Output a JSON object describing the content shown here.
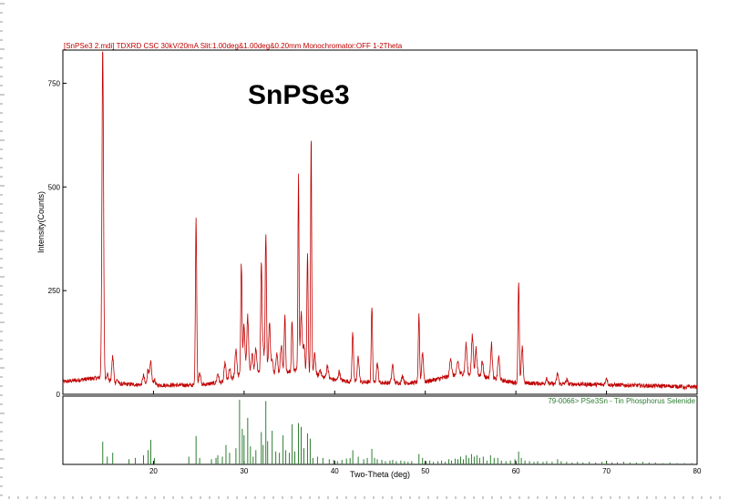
{
  "header_text": "[SnPSe3 2.mdi] TDXRD CSC 30kV/20mA Slit:1.00deg&1.00deg&0.20mm Monochromator:OFF 1-2Theta",
  "big_title": "SnPSe3",
  "reference_label": "79-0066> PSe3Sn - Tin Phosphorus Selenide",
  "colors": {
    "pattern": "#c00000",
    "reference": "#2e7d32",
    "header": "#c00000",
    "axis": "#000000"
  },
  "chart_data": [
    {
      "type": "line",
      "title": "SnPSe3",
      "xlabel": "",
      "ylabel": "Intensity(Counts)",
      "xlim": [
        10,
        80
      ],
      "ylim": [
        0,
        830
      ],
      "x_ticks": [
        20,
        30,
        40,
        50,
        60,
        70,
        80
      ],
      "y_ticks": [
        0,
        250,
        500,
        750
      ],
      "baseline": [
        [
          10,
          30
        ],
        [
          14,
          40
        ],
        [
          16,
          25
        ],
        [
          20,
          22
        ],
        [
          25,
          22
        ],
        [
          28,
          30
        ],
        [
          30,
          50
        ],
        [
          32,
          55
        ],
        [
          34,
          50
        ],
        [
          36,
          60
        ],
        [
          38,
          45
        ],
        [
          40,
          35
        ],
        [
          42,
          30
        ],
        [
          45,
          28
        ],
        [
          48,
          27
        ],
        [
          50,
          30
        ],
        [
          52,
          40
        ],
        [
          54,
          50
        ],
        [
          56,
          45
        ],
        [
          58,
          35
        ],
        [
          60,
          28
        ],
        [
          64,
          25
        ],
        [
          68,
          24
        ],
        [
          72,
          22
        ],
        [
          76,
          20
        ],
        [
          80,
          18
        ]
      ],
      "peaks": [
        [
          14.4,
          815,
          0.09
        ],
        [
          14.9,
          50,
          0.1
        ],
        [
          15.5,
          90,
          0.1
        ],
        [
          16.0,
          35,
          0.1
        ],
        [
          18.9,
          45,
          0.1
        ],
        [
          19.4,
          60,
          0.1
        ],
        [
          19.7,
          75,
          0.1
        ],
        [
          20.1,
          35,
          0.1
        ],
        [
          24.7,
          430,
          0.07
        ],
        [
          25.1,
          55,
          0.1
        ],
        [
          27.1,
          50,
          0.1
        ],
        [
          27.9,
          75,
          0.1
        ],
        [
          28.4,
          60,
          0.1
        ],
        [
          29.1,
          110,
          0.1
        ],
        [
          29.7,
          315,
          0.07
        ],
        [
          30.0,
          165,
          0.1
        ],
        [
          30.4,
          185,
          0.1
        ],
        [
          30.9,
          95,
          0.1
        ],
        [
          31.3,
          110,
          0.1
        ],
        [
          31.9,
          315,
          0.07
        ],
        [
          32.1,
          120,
          0.1
        ],
        [
          32.4,
          395,
          0.07
        ],
        [
          32.8,
          170,
          0.1
        ],
        [
          33.1,
          80,
          0.1
        ],
        [
          33.6,
          100,
          0.1
        ],
        [
          34.1,
          120,
          0.1
        ],
        [
          34.5,
          195,
          0.07
        ],
        [
          35.3,
          180,
          0.07
        ],
        [
          36.0,
          525,
          0.06
        ],
        [
          36.3,
          200,
          0.1
        ],
        [
          36.6,
          120,
          0.1
        ],
        [
          37.0,
          325,
          0.07
        ],
        [
          37.4,
          620,
          0.06
        ],
        [
          37.8,
          95,
          0.1
        ],
        [
          38.4,
          60,
          0.1
        ],
        [
          39.2,
          70,
          0.1
        ],
        [
          40.5,
          55,
          0.1
        ],
        [
          42.0,
          150,
          0.08
        ],
        [
          42.6,
          90,
          0.1
        ],
        [
          44.1,
          215,
          0.07
        ],
        [
          44.7,
          75,
          0.1
        ],
        [
          46.4,
          70,
          0.1
        ],
        [
          47.5,
          45,
          0.1
        ],
        [
          49.3,
          185,
          0.07
        ],
        [
          49.7,
          100,
          0.1
        ],
        [
          52.8,
          90,
          0.1
        ],
        [
          53.6,
          80,
          0.1
        ],
        [
          54.5,
          120,
          0.1
        ],
        [
          55.2,
          140,
          0.1
        ],
        [
          55.6,
          110,
          0.1
        ],
        [
          56.3,
          80,
          0.1
        ],
        [
          57.3,
          120,
          0.1
        ],
        [
          58.1,
          90,
          0.1
        ],
        [
          60.3,
          275,
          0.07
        ],
        [
          60.7,
          110,
          0.1
        ],
        [
          63.4,
          40,
          0.1
        ],
        [
          64.6,
          50,
          0.1
        ],
        [
          65.6,
          35,
          0.1
        ],
        [
          70.0,
          40,
          0.1
        ],
        [
          74.3,
          20,
          0.15
        ],
        [
          78.7,
          15,
          0.15
        ]
      ]
    },
    {
      "type": "bar",
      "xlabel": "Two-Theta (deg)",
      "ylabel": "",
      "xlim": [
        10,
        80
      ],
      "ylim": [
        0,
        100
      ],
      "x_ticks": [
        20,
        30,
        40,
        50,
        60,
        70,
        80
      ],
      "sticks": [
        [
          14.4,
          35
        ],
        [
          14.9,
          12
        ],
        [
          15.5,
          18
        ],
        [
          17.3,
          8
        ],
        [
          18.0,
          10
        ],
        [
          18.9,
          14
        ],
        [
          19.4,
          22
        ],
        [
          19.7,
          38
        ],
        [
          20.1,
          10
        ],
        [
          23.9,
          12
        ],
        [
          24.7,
          44
        ],
        [
          25.1,
          10
        ],
        [
          26.4,
          8
        ],
        [
          26.9,
          10
        ],
        [
          27.1,
          14
        ],
        [
          27.6,
          12
        ],
        [
          28.0,
          30
        ],
        [
          28.4,
          18
        ],
        [
          29.1,
          25
        ],
        [
          29.5,
          100
        ],
        [
          29.8,
          55
        ],
        [
          30.0,
          45
        ],
        [
          30.4,
          72
        ],
        [
          30.7,
          28
        ],
        [
          31.0,
          12
        ],
        [
          31.3,
          22
        ],
        [
          31.9,
          50
        ],
        [
          32.1,
          30
        ],
        [
          32.4,
          98
        ],
        [
          32.6,
          36
        ],
        [
          33.1,
          52
        ],
        [
          33.5,
          20
        ],
        [
          33.9,
          18
        ],
        [
          34.3,
          45
        ],
        [
          34.6,
          22
        ],
        [
          35.0,
          18
        ],
        [
          35.3,
          62
        ],
        [
          35.6,
          20
        ],
        [
          36.0,
          64
        ],
        [
          36.3,
          58
        ],
        [
          36.6,
          25
        ],
        [
          37.0,
          48
        ],
        [
          37.3,
          40
        ],
        [
          37.6,
          10
        ],
        [
          38.1,
          12
        ],
        [
          38.7,
          10
        ],
        [
          39.4,
          8
        ],
        [
          39.9,
          7
        ],
        [
          40.3,
          5
        ],
        [
          40.8,
          7
        ],
        [
          41.3,
          9
        ],
        [
          41.7,
          10
        ],
        [
          42.0,
          22
        ],
        [
          42.6,
          12
        ],
        [
          43.2,
          8
        ],
        [
          43.6,
          10
        ],
        [
          44.1,
          24
        ],
        [
          44.4,
          10
        ],
        [
          44.7,
          8
        ],
        [
          45.2,
          7
        ],
        [
          45.6,
          5
        ],
        [
          46.1,
          6
        ],
        [
          46.4,
          7
        ],
        [
          46.8,
          5
        ],
        [
          47.3,
          6
        ],
        [
          47.7,
          5
        ],
        [
          48.1,
          4
        ],
        [
          48.5,
          5
        ],
        [
          49.3,
          16
        ],
        [
          49.7,
          10
        ],
        [
          50.1,
          5
        ],
        [
          50.5,
          6
        ],
        [
          50.9,
          4
        ],
        [
          51.4,
          5
        ],
        [
          51.8,
          6
        ],
        [
          52.2,
          4
        ],
        [
          52.6,
          8
        ],
        [
          52.9,
          6
        ],
        [
          53.3,
          9
        ],
        [
          53.6,
          8
        ],
        [
          53.9,
          12
        ],
        [
          54.2,
          8
        ],
        [
          54.5,
          14
        ],
        [
          54.8,
          10
        ],
        [
          55.1,
          16
        ],
        [
          55.4,
          12
        ],
        [
          55.7,
          14
        ],
        [
          56.0,
          10
        ],
        [
          56.4,
          12
        ],
        [
          56.8,
          6
        ],
        [
          57.2,
          14
        ],
        [
          57.6,
          10
        ],
        [
          58.0,
          10
        ],
        [
          58.4,
          6
        ],
        [
          58.9,
          5
        ],
        [
          59.4,
          6
        ],
        [
          59.9,
          8
        ],
        [
          60.3,
          20
        ],
        [
          60.6,
          10
        ],
        [
          61.0,
          6
        ],
        [
          61.5,
          5
        ],
        [
          62.0,
          4
        ],
        [
          62.4,
          5
        ],
        [
          63.0,
          4
        ],
        [
          63.4,
          5
        ],
        [
          64.0,
          4
        ],
        [
          64.6,
          8
        ],
        [
          65.0,
          5
        ],
        [
          65.6,
          4
        ],
        [
          66.2,
          3
        ],
        [
          66.8,
          4
        ],
        [
          67.4,
          3
        ],
        [
          68.1,
          4
        ],
        [
          68.8,
          3
        ],
        [
          69.5,
          4
        ],
        [
          70.0,
          5
        ],
        [
          70.6,
          3
        ],
        [
          71.2,
          3
        ],
        [
          71.9,
          4
        ],
        [
          72.6,
          3
        ],
        [
          73.3,
          3
        ],
        [
          74.0,
          4
        ],
        [
          74.7,
          3
        ],
        [
          75.4,
          3
        ],
        [
          76.2,
          2
        ],
        [
          77.0,
          3
        ],
        [
          77.8,
          2
        ],
        [
          78.6,
          2
        ],
        [
          79.4,
          2
        ]
      ]
    }
  ]
}
